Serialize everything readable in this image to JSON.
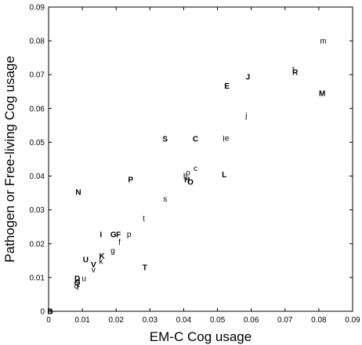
{
  "chart_data": {
    "type": "scatter",
    "xlabel": "EM-C Cog usage",
    "ylabel": "Pathogen or Free-living Cog usage",
    "xlim": [
      0,
      0.09
    ],
    "ylim": [
      0,
      0.09
    ],
    "xticks": [
      "0",
      "0.01",
      "0.02",
      "0.03",
      "0.04",
      "0.05",
      "0.06",
      "0.07",
      "0.08",
      "0.09"
    ],
    "yticks": [
      "0",
      "0.01",
      "0.02",
      "0.03",
      "0.04",
      "0.05",
      "0.06",
      "0.07",
      "0.08",
      "0.09"
    ],
    "grid": false,
    "legend": "none",
    "point_marker": "text label",
    "series": [
      {
        "points": [
          {
            "label": "m",
            "x": 0.0813,
            "y": 0.08
          },
          {
            "label": "r",
            "x": 0.0725,
            "y": 0.0718
          },
          {
            "label": "R",
            "x": 0.073,
            "y": 0.0708
          },
          {
            "label": "J",
            "x": 0.059,
            "y": 0.0693
          },
          {
            "label": "E",
            "x": 0.0528,
            "y": 0.0667
          },
          {
            "label": "M",
            "x": 0.081,
            "y": 0.0645
          },
          {
            "label": "j",
            "x": 0.0585,
            "y": 0.058
          },
          {
            "label": "S",
            "x": 0.0345,
            "y": 0.051
          },
          {
            "label": "C",
            "x": 0.0435,
            "y": 0.051
          },
          {
            "label": "l",
            "x": 0.0518,
            "y": 0.051
          },
          {
            "label": "e",
            "x": 0.0528,
            "y": 0.0513
          },
          {
            "label": "c",
            "x": 0.0435,
            "y": 0.0423
          },
          {
            "label": "o",
            "x": 0.0413,
            "y": 0.041
          },
          {
            "label": "L",
            "x": 0.052,
            "y": 0.0405
          },
          {
            "label": "P",
            "x": 0.0243,
            "y": 0.039
          },
          {
            "label": "h",
            "x": 0.0405,
            "y": 0.04
          },
          {
            "label": "H",
            "x": 0.041,
            "y": 0.039
          },
          {
            "label": "O",
            "x": 0.042,
            "y": 0.0383
          },
          {
            "label": "N",
            "x": 0.0088,
            "y": 0.0353
          },
          {
            "label": "s",
            "x": 0.0345,
            "y": 0.0333
          },
          {
            "label": "t",
            "x": 0.0282,
            "y": 0.0275
          },
          {
            "label": "I",
            "x": 0.0155,
            "y": 0.0227
          },
          {
            "label": "G",
            "x": 0.0192,
            "y": 0.0227
          },
          {
            "label": "F",
            "x": 0.0207,
            "y": 0.0227
          },
          {
            "label": "p",
            "x": 0.0238,
            "y": 0.0228
          },
          {
            "label": "f",
            "x": 0.021,
            "y": 0.0205
          },
          {
            "label": "g",
            "x": 0.019,
            "y": 0.018
          },
          {
            "label": "U",
            "x": 0.011,
            "y": 0.0153
          },
          {
            "label": "K",
            "x": 0.0158,
            "y": 0.0163
          },
          {
            "label": "k",
            "x": 0.0155,
            "y": 0.0148
          },
          {
            "label": "V",
            "x": 0.0133,
            "y": 0.0138
          },
          {
            "label": "v",
            "x": 0.0133,
            "y": 0.0123
          },
          {
            "label": "T",
            "x": 0.0285,
            "y": 0.013
          },
          {
            "label": "D",
            "x": 0.0085,
            "y": 0.0097
          },
          {
            "label": "u",
            "x": 0.0105,
            "y": 0.0098
          },
          {
            "label": "d",
            "x": 0.0087,
            "y": 0.009
          },
          {
            "label": "Q",
            "x": 0.0085,
            "y": 0.0085
          },
          {
            "label": "q",
            "x": 0.0082,
            "y": 0.0075
          },
          {
            "label": "i",
            "x": 0.0087,
            "y": 0.0077
          },
          {
            "label": "B",
            "x": 0.0005,
            "y": 0.0
          },
          {
            "label": "b",
            "x": 0.0003,
            "y": 0.0
          }
        ]
      }
    ]
  }
}
